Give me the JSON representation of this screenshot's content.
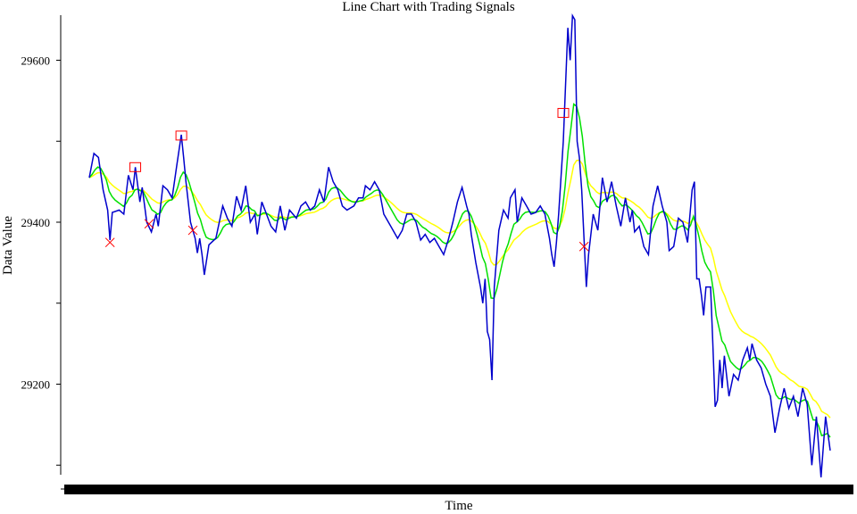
{
  "chart_data": {
    "type": "line",
    "title": "Line Chart with Trading Signals",
    "xlabel": "Time",
    "ylabel": "Data Value",
    "ylim": [
      29100,
      29655
    ],
    "yticks": [
      29200,
      29400,
      29600
    ],
    "colors": {
      "price": "#0000cc",
      "fast_ma": "#00e000",
      "slow_ma": "#ffff00",
      "buy_marker": "#ff0000",
      "sell_marker": "#ff0000"
    },
    "grid": false,
    "legend": "none",
    "n_points": 260,
    "price_anchors": [
      [
        0,
        29455
      ],
      [
        2,
        29485
      ],
      [
        4,
        29480
      ],
      [
        6,
        29440
      ],
      [
        8,
        29415
      ],
      [
        9,
        29378
      ],
      [
        10,
        29412
      ],
      [
        13,
        29415
      ],
      [
        15,
        29410
      ],
      [
        17,
        29458
      ],
      [
        19,
        29440
      ],
      [
        20,
        29468
      ],
      [
        22,
        29425
      ],
      [
        23,
        29443
      ],
      [
        25,
        29400
      ],
      [
        27,
        29388
      ],
      [
        29,
        29410
      ],
      [
        30,
        29395
      ],
      [
        32,
        29445
      ],
      [
        34,
        29440
      ],
      [
        36,
        29430
      ],
      [
        38,
        29470
      ],
      [
        40,
        29508
      ],
      [
        41,
        29480
      ],
      [
        42,
        29450
      ],
      [
        44,
        29400
      ],
      [
        46,
        29380
      ],
      [
        47,
        29362
      ],
      [
        48,
        29380
      ],
      [
        49,
        29360
      ],
      [
        50,
        29335
      ],
      [
        52,
        29372
      ],
      [
        55,
        29380
      ],
      [
        58,
        29420
      ],
      [
        60,
        29405
      ],
      [
        62,
        29395
      ],
      [
        64,
        29432
      ],
      [
        66,
        29415
      ],
      [
        68,
        29445
      ],
      [
        70,
        29400
      ],
      [
        72,
        29410
      ],
      [
        73,
        29385
      ],
      [
        75,
        29425
      ],
      [
        77,
        29410
      ],
      [
        79,
        29395
      ],
      [
        81,
        29388
      ],
      [
        83,
        29420
      ],
      [
        85,
        29390
      ],
      [
        87,
        29415
      ],
      [
        90,
        29405
      ],
      [
        92,
        29420
      ],
      [
        94,
        29425
      ],
      [
        96,
        29415
      ],
      [
        98,
        29420
      ],
      [
        100,
        29440
      ],
      [
        102,
        29425
      ],
      [
        104,
        29468
      ],
      [
        106,
        29450
      ],
      [
        108,
        29440
      ],
      [
        110,
        29420
      ],
      [
        112,
        29415
      ],
      [
        115,
        29420
      ],
      [
        117,
        29430
      ],
      [
        119,
        29430
      ],
      [
        120,
        29445
      ],
      [
        122,
        29440
      ],
      [
        124,
        29450
      ],
      [
        126,
        29440
      ],
      [
        128,
        29410
      ],
      [
        131,
        29395
      ],
      [
        134,
        29380
      ],
      [
        136,
        29390
      ],
      [
        138,
        29410
      ],
      [
        140,
        29410
      ],
      [
        142,
        29400
      ],
      [
        144,
        29378
      ],
      [
        146,
        29385
      ],
      [
        148,
        29375
      ],
      [
        150,
        29380
      ],
      [
        152,
        29370
      ],
      [
        154,
        29360
      ],
      [
        156,
        29378
      ],
      [
        158,
        29400
      ],
      [
        160,
        29425
      ],
      [
        162,
        29443
      ],
      [
        164,
        29420
      ],
      [
        165,
        29410
      ],
      [
        166,
        29385
      ],
      [
        168,
        29350
      ],
      [
        170,
        29320
      ],
      [
        171,
        29300
      ],
      [
        172,
        29330
      ],
      [
        173,
        29265
      ],
      [
        174,
        29255
      ],
      [
        175,
        29205
      ],
      [
        176,
        29320
      ],
      [
        178,
        29390
      ],
      [
        180,
        29415
      ],
      [
        182,
        29405
      ],
      [
        183,
        29430
      ],
      [
        185,
        29440
      ],
      [
        186,
        29400
      ],
      [
        188,
        29430
      ],
      [
        190,
        29420
      ],
      [
        192,
        29410
      ],
      [
        194,
        29412
      ],
      [
        196,
        29420
      ],
      [
        198,
        29410
      ],
      [
        200,
        29380
      ],
      [
        201,
        29360
      ],
      [
        202,
        29345
      ],
      [
        203,
        29375
      ],
      [
        204,
        29410
      ],
      [
        206,
        29500
      ],
      [
        208,
        29640
      ],
      [
        209,
        29600
      ],
      [
        210,
        29655
      ],
      [
        211,
        29650
      ],
      [
        212,
        29500
      ],
      [
        213,
        29480
      ],
      [
        214,
        29440
      ],
      [
        215,
        29380
      ],
      [
        216,
        29320
      ],
      [
        217,
        29360
      ],
      [
        219,
        29410
      ],
      [
        221,
        29390
      ],
      [
        223,
        29455
      ],
      [
        225,
        29425
      ],
      [
        227,
        29450
      ],
      [
        229,
        29420
      ],
      [
        231,
        29395
      ],
      [
        233,
        29430
      ],
      [
        235,
        29400
      ],
      [
        236,
        29415
      ],
      [
        237,
        29388
      ],
      [
        239,
        29395
      ],
      [
        241,
        29370
      ],
      [
        243,
        29360
      ],
      [
        245,
        29420
      ],
      [
        247,
        29445
      ],
      [
        249,
        29420
      ],
      [
        251,
        29400
      ],
      [
        252,
        29365
      ],
      [
        254,
        29370
      ],
      [
        256,
        29405
      ],
      [
        258,
        29400
      ],
      [
        260,
        29375
      ],
      [
        262,
        29440
      ],
      [
        263,
        29450
      ],
      [
        264,
        29330
      ],
      [
        265,
        29330
      ],
      [
        266,
        29310
      ],
      [
        267,
        29285
      ],
      [
        268,
        29320
      ],
      [
        270,
        29320
      ],
      [
        271,
        29250
      ],
      [
        272,
        29172
      ],
      [
        273,
        29180
      ],
      [
        274,
        29230
      ],
      [
        275,
        29195
      ],
      [
        276,
        29235
      ],
      [
        278,
        29185
      ],
      [
        280,
        29212
      ],
      [
        282,
        29205
      ],
      [
        284,
        29230
      ],
      [
        286,
        29245
      ],
      [
        287,
        29230
      ],
      [
        288,
        29250
      ],
      [
        290,
        29230
      ],
      [
        292,
        29220
      ],
      [
        294,
        29200
      ],
      [
        296,
        29185
      ],
      [
        298,
        29140
      ],
      [
        300,
        29170
      ],
      [
        302,
        29195
      ],
      [
        304,
        29170
      ],
      [
        306,
        29185
      ],
      [
        308,
        29160
      ],
      [
        310,
        29195
      ],
      [
        312,
        29175
      ],
      [
        314,
        29100
      ],
      [
        316,
        29160
      ],
      [
        318,
        29085
      ],
      [
        320,
        29160
      ],
      [
        322,
        29118
      ]
    ],
    "buy_signals": [
      [
        9,
        29375
      ],
      [
        26,
        29398
      ],
      [
        45,
        29390
      ],
      [
        215,
        29370
      ]
    ],
    "sell_signals": [
      [
        20,
        29468
      ],
      [
        40,
        29507
      ],
      [
        206,
        29535
      ]
    ]
  }
}
